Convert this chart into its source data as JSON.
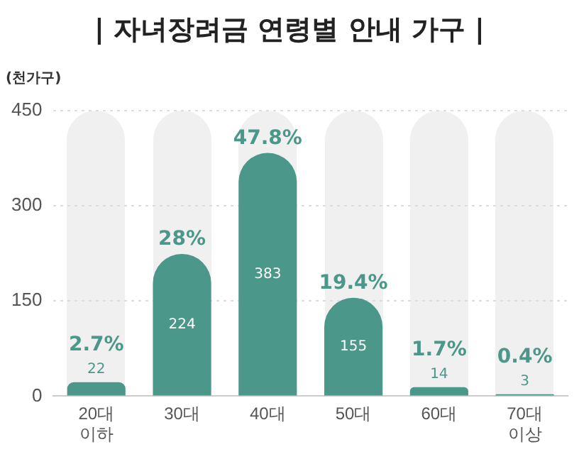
{
  "chart_data": {
    "type": "bar",
    "title": "| 자녀장려금 연령별 안내 가구 |",
    "ylabel": "(천가구)",
    "categories": [
      "20대 이하",
      "30대",
      "40대",
      "50대",
      "60대",
      "70대 이상"
    ],
    "values": [
      22,
      224,
      383,
      155,
      14,
      3
    ],
    "color": "#4b978a",
    "ylim": [
      0,
      450
    ],
    "yticks": [
      0,
      150,
      300,
      450
    ],
    "grid": "y",
    "data_labels": true,
    "annotations": [
      {
        "text": "2.7%",
        "x": "20대 이하",
        "y": 22
      },
      {
        "text": "28%",
        "x": "30대",
        "y": 224
      },
      {
        "text": "47.8%",
        "x": "40대",
        "y": 383
      },
      {
        "text": "19.4%",
        "x": "50대",
        "y": 155
      },
      {
        "text": "1.7%",
        "x": "60대",
        "y": 14
      },
      {
        "text": "0.4%",
        "x": "70대 이상",
        "y": 3
      }
    ]
  }
}
